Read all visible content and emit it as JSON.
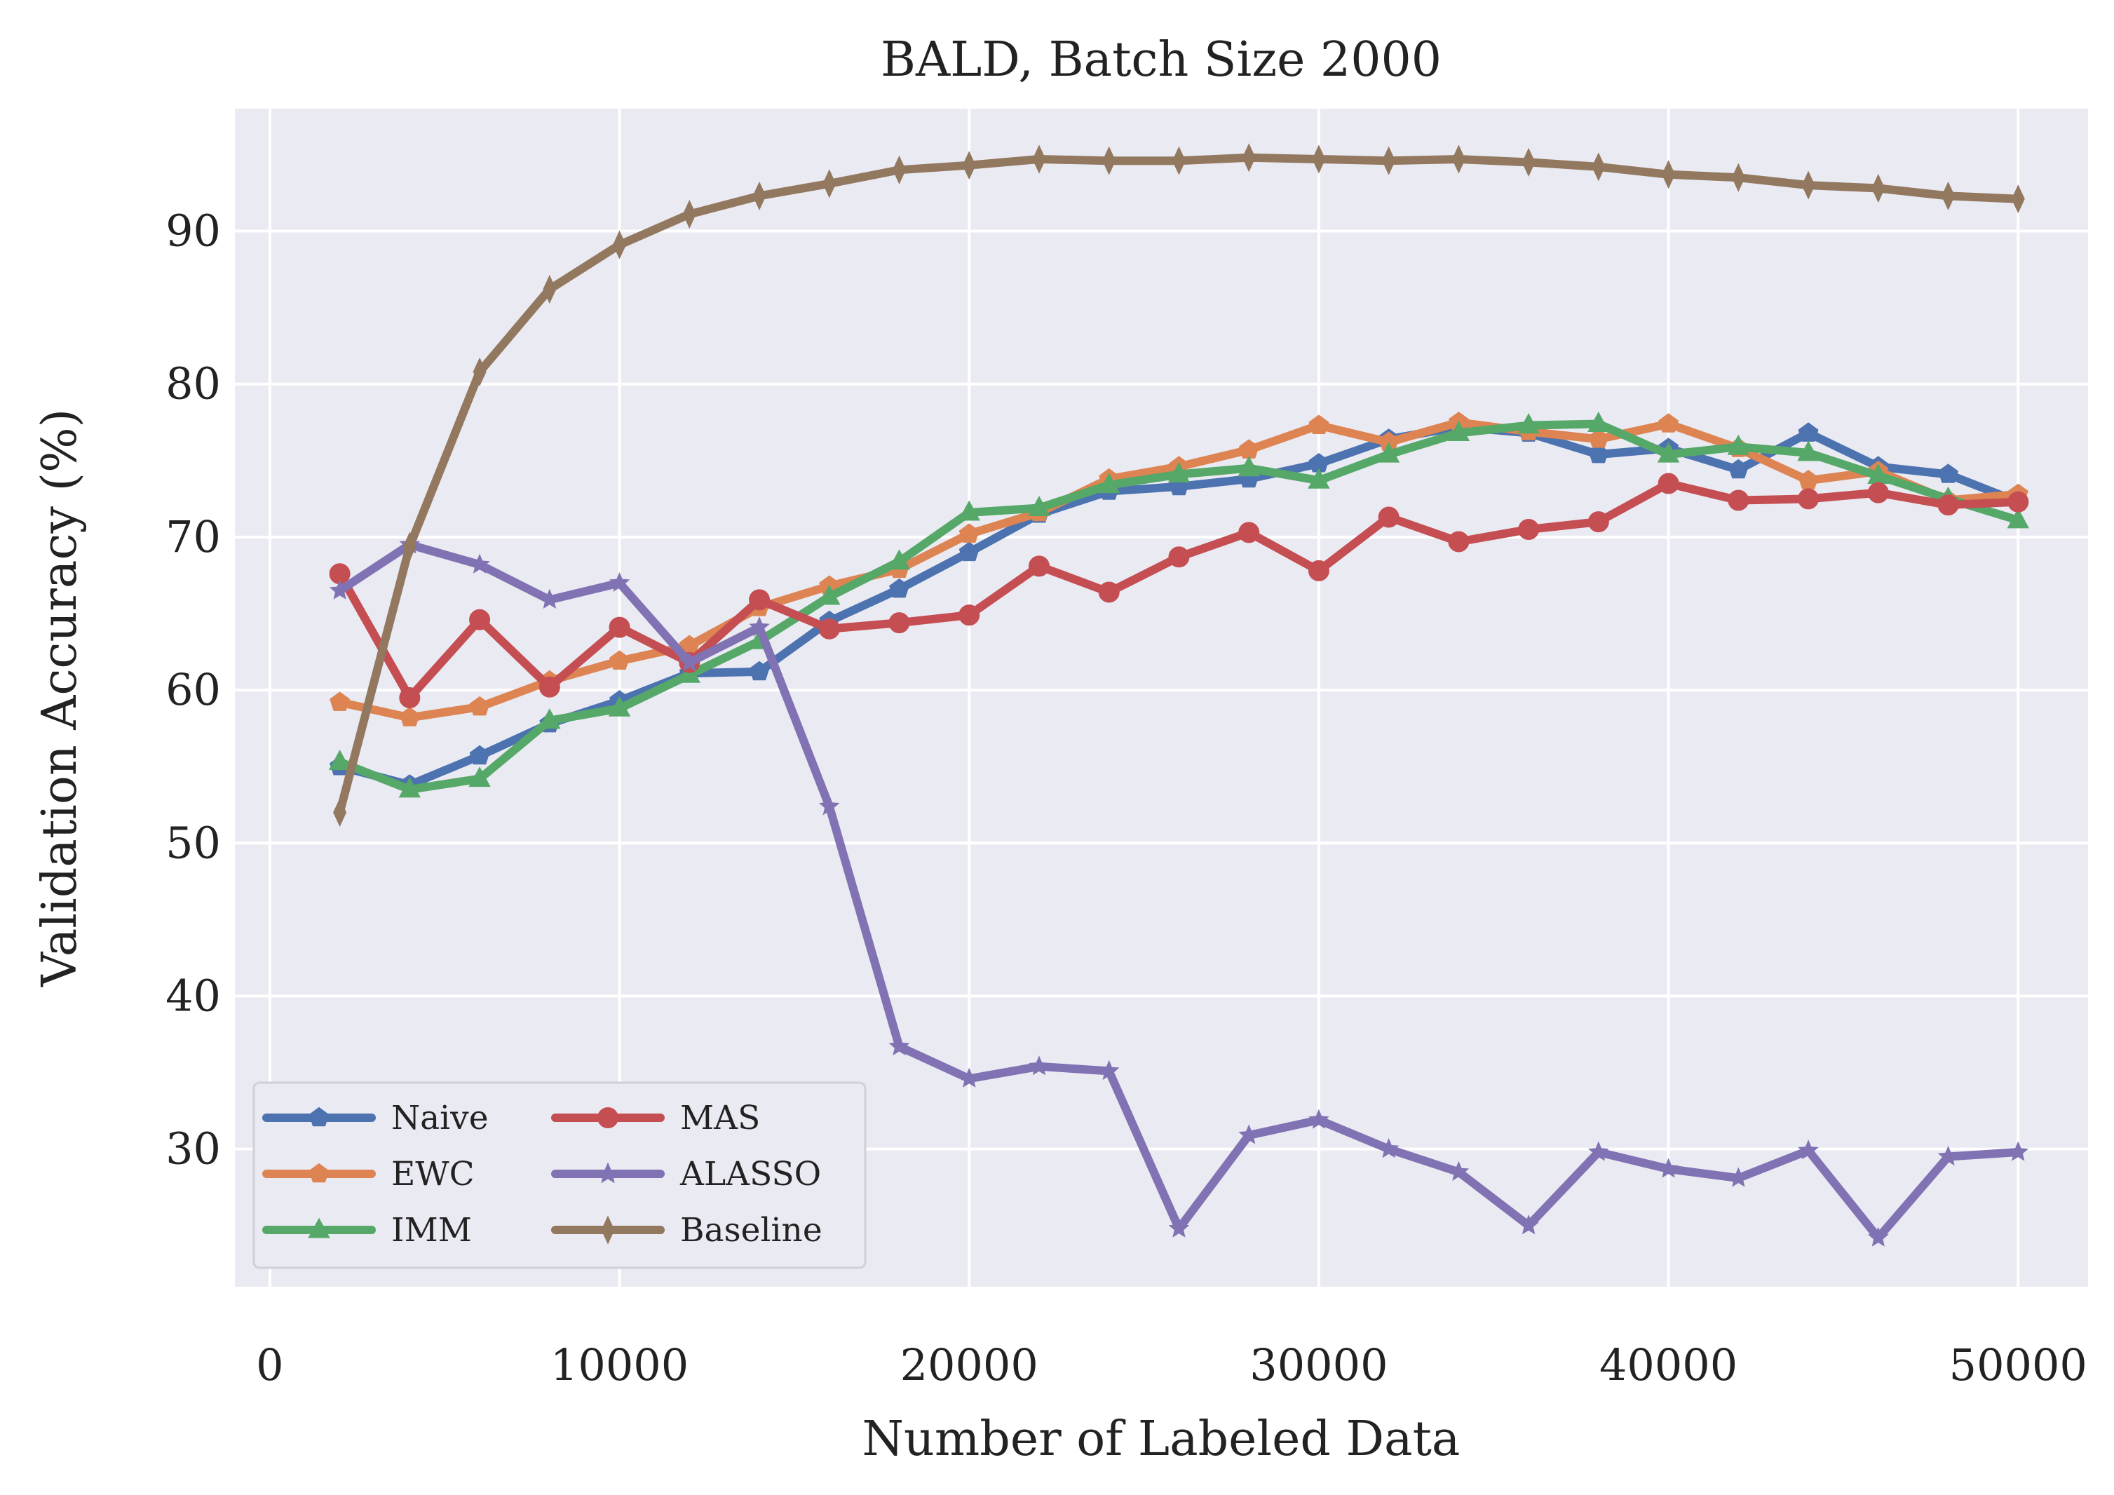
{
  "chart_data": {
    "type": "line",
    "title": "BALD, Batch Size 2000",
    "xlabel": "Number of Labeled Data",
    "ylabel": "Validation Accuracy (%)",
    "xlim": [
      -1000,
      52000
    ],
    "ylim": [
      21,
      98
    ],
    "xticks": [
      0,
      10000,
      20000,
      30000,
      40000,
      50000
    ],
    "yticks": [
      30,
      40,
      50,
      60,
      70,
      80,
      90
    ],
    "grid": true,
    "legend": "lower-left",
    "background": "#eaeaf2",
    "x": [
      2000,
      4000,
      6000,
      8000,
      10000,
      12000,
      14000,
      16000,
      18000,
      20000,
      22000,
      24000,
      26000,
      28000,
      30000,
      32000,
      34000,
      36000,
      38000,
      40000,
      42000,
      44000,
      46000,
      48000,
      50000
    ],
    "series": [
      {
        "name": "Naive",
        "color": "#4c72b0",
        "marker": "pentagon",
        "values": [
          55.0,
          53.8,
          55.7,
          57.8,
          59.3,
          61.1,
          61.2,
          64.5,
          66.6,
          69.0,
          71.5,
          73.0,
          73.3,
          73.8,
          74.8,
          76.4,
          77.2,
          76.8,
          75.4,
          75.8,
          74.4,
          76.8,
          74.6,
          74.1,
          72.3
        ]
      },
      {
        "name": "EWC",
        "color": "#dd8452",
        "marker": "pentagon",
        "values": [
          59.2,
          58.2,
          58.9,
          60.6,
          61.9,
          62.9,
          65.4,
          66.8,
          67.9,
          70.2,
          71.6,
          73.8,
          74.6,
          75.7,
          77.3,
          76.2,
          77.5,
          76.9,
          76.4,
          77.4,
          75.8,
          73.7,
          74.3,
          72.4,
          72.8
        ]
      },
      {
        "name": "IMM",
        "color": "#55a868",
        "marker": "triangle",
        "values": [
          55.3,
          53.5,
          54.2,
          58.0,
          58.8,
          61.0,
          63.2,
          66.1,
          68.4,
          71.6,
          71.9,
          73.4,
          74.1,
          74.5,
          73.7,
          75.4,
          76.8,
          77.3,
          77.4,
          75.4,
          75.9,
          75.5,
          74.0,
          72.5,
          71.1
        ]
      },
      {
        "name": "MAS",
        "color": "#c44e52",
        "marker": "circle",
        "values": [
          67.6,
          59.5,
          64.6,
          60.2,
          64.1,
          61.8,
          65.9,
          64.0,
          64.4,
          64.9,
          68.1,
          66.4,
          68.7,
          70.3,
          67.8,
          71.3,
          69.7,
          70.5,
          71.0,
          73.5,
          72.4,
          72.5,
          72.9,
          72.1,
          72.3
        ]
      },
      {
        "name": "ALASSO",
        "color": "#8172b3",
        "marker": "star",
        "values": [
          66.5,
          69.5,
          68.2,
          65.9,
          67.0,
          61.8,
          64.1,
          52.4,
          36.7,
          34.6,
          35.4,
          35.1,
          24.8,
          30.9,
          31.9,
          30.0,
          28.5,
          25.0,
          29.8,
          28.7,
          28.1,
          29.9,
          24.2,
          29.5,
          29.8
        ]
      },
      {
        "name": "Baseline",
        "color": "#937860",
        "marker": "thin_diamond",
        "values": [
          52.0,
          69.4,
          80.8,
          86.2,
          89.1,
          91.1,
          92.3,
          93.1,
          94.0,
          94.3,
          94.7,
          94.6,
          94.6,
          94.8,
          94.7,
          94.6,
          94.7,
          94.5,
          94.2,
          93.7,
          93.5,
          93.0,
          92.8,
          92.3,
          92.1
        ]
      }
    ]
  }
}
